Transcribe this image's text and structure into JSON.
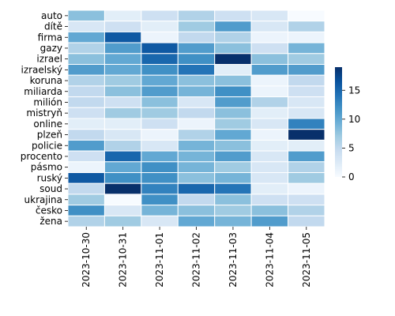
{
  "chart_data": {
    "type": "heatmap",
    "title": "",
    "xlabel": "",
    "ylabel": "",
    "rows": [
      "auto",
      "dítě",
      "firma",
      "gazy",
      "izrael",
      "izraelský",
      "koruna",
      "miliarda",
      "milión",
      "mistryň",
      "online",
      "plzeň",
      "policie",
      "procento",
      "pásmo",
      "ruský",
      "soud",
      "ukrajina",
      "česko",
      "žena"
    ],
    "columns": [
      "2023-10-30",
      "2023-10-31",
      "2023-11-01",
      "2023-11-02",
      "2023-11-03",
      "2023-11-04",
      "2023-11-05"
    ],
    "values": [
      [
        8,
        2,
        4,
        6,
        4,
        3,
        0
      ],
      [
        3,
        4,
        2,
        7,
        11,
        3,
        6
      ],
      [
        10,
        16,
        1,
        5,
        6,
        1,
        1
      ],
      [
        6,
        11,
        16,
        11,
        8,
        4,
        9
      ],
      [
        8,
        10,
        15,
        12,
        19,
        8,
        7
      ],
      [
        11,
        10,
        12,
        14,
        2,
        11,
        11
      ],
      [
        6,
        7,
        10,
        8,
        8,
        1,
        5
      ],
      [
        5,
        8,
        11,
        9,
        12,
        1,
        4
      ],
      [
        5,
        4,
        8,
        3,
        11,
        6,
        3
      ],
      [
        4,
        7,
        7,
        5,
        8,
        2,
        3
      ],
      [
        2,
        2,
        4,
        1,
        7,
        3,
        13
      ],
      [
        5,
        3,
        1,
        6,
        10,
        1,
        19
      ],
      [
        11,
        6,
        3,
        9,
        8,
        2,
        2
      ],
      [
        4,
        15,
        10,
        9,
        11,
        3,
        11
      ],
      [
        1,
        10,
        12,
        9,
        7,
        3,
        6
      ],
      [
        16,
        12,
        12,
        8,
        9,
        3,
        7
      ],
      [
        5,
        19,
        13,
        15,
        14,
        2,
        1
      ],
      [
        7,
        0,
        12,
        5,
        8,
        4,
        4
      ],
      [
        12,
        3,
        9,
        8,
        7,
        8,
        6
      ],
      [
        6,
        7,
        3,
        10,
        9,
        11,
        5
      ]
    ],
    "colorbar": {
      "min": 0,
      "max": 19,
      "ticks": [
        0,
        5,
        10,
        15
      ]
    },
    "colormap": "Blues",
    "cell_border_color": "#ffffff",
    "grid": false,
    "legend": "colorbar-right"
  }
}
